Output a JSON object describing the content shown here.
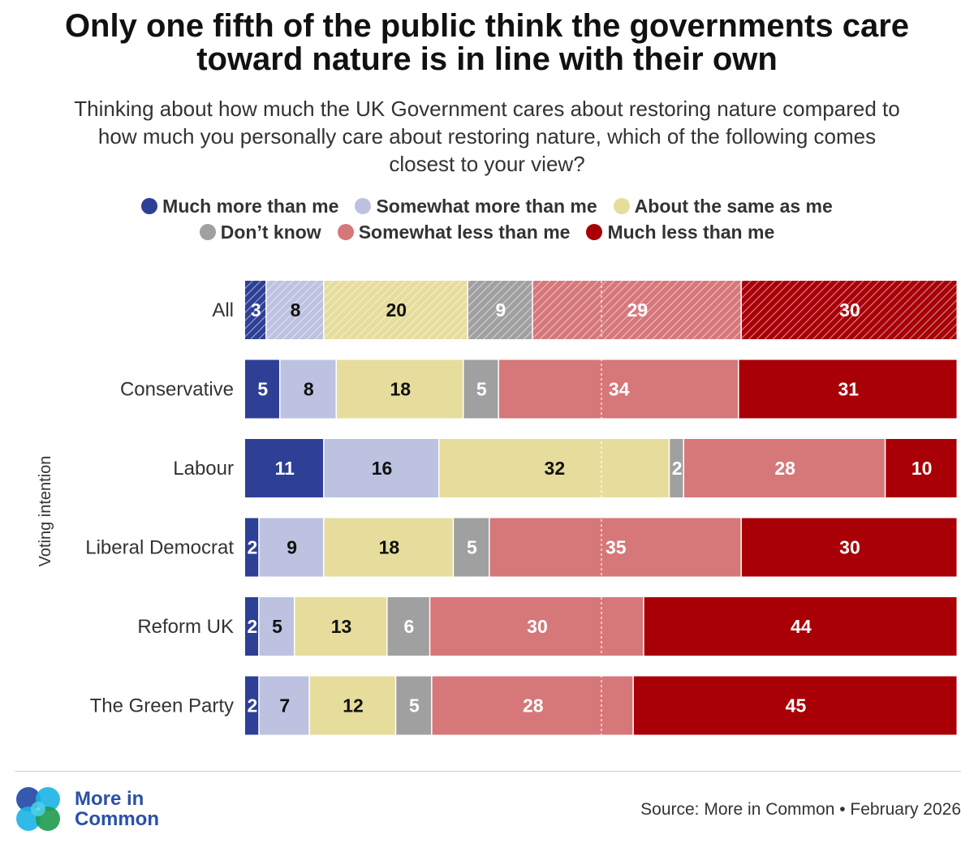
{
  "title_line1": "Only one fifth of the public think the governments care",
  "title_line2": "toward nature is in line with their own",
  "subtitle_line1": "Thinking about how much the UK Government cares about restoring nature compared to",
  "subtitle_line2": "how much you personally care about restoring nature, which of the following comes",
  "subtitle_line3": "closest to your view?",
  "colors": {
    "much_more": "#2e3f96",
    "somewhat_more": "#bcc2e0",
    "about_same": "#e6dd9c",
    "dont_know": "#a0a0a0",
    "somewhat_less": "#d6777a",
    "much_less": "#a80006"
  },
  "chart_data": {
    "type": "bar",
    "orientation": "horizontal",
    "stacked": true,
    "title": "Only one fifth of the public think the governments care toward nature is in line with their own",
    "ylabel": "Voting intention",
    "xlim": [
      0,
      100
    ],
    "categories": [
      "All",
      "Conservative",
      "Labour",
      "Liberal Democrat",
      "Reform UK",
      "The Green Party"
    ],
    "series": [
      {
        "name": "Much more than me",
        "values": [
          3,
          5,
          11,
          2,
          2,
          2
        ]
      },
      {
        "name": "Somewhat more than me",
        "values": [
          8,
          8,
          16,
          9,
          5,
          7
        ]
      },
      {
        "name": "About the same as me",
        "values": [
          20,
          18,
          32,
          18,
          13,
          12
        ]
      },
      {
        "name": "Don’t know",
        "values": [
          9,
          5,
          2,
          5,
          6,
          5
        ]
      },
      {
        "name": "Somewhat less than me",
        "values": [
          29,
          34,
          28,
          35,
          30,
          28
        ]
      },
      {
        "name": "Much less than me",
        "values": [
          30,
          31,
          10,
          30,
          44,
          45
        ]
      }
    ],
    "highlighted_category": "All",
    "legend_position": "top-center"
  },
  "logo": {
    "line1": "More in",
    "line2": "Common"
  },
  "source": "Source: More in Common • February 2026"
}
